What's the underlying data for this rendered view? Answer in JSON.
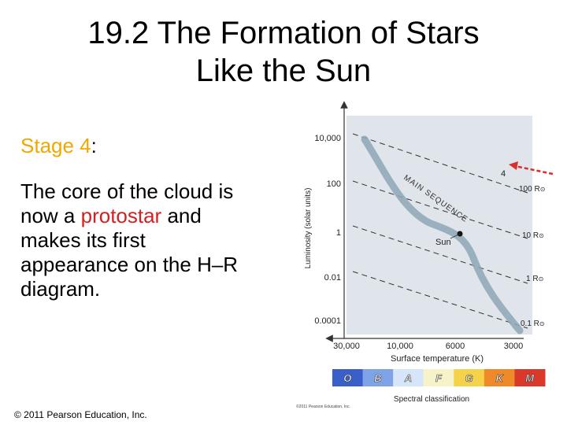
{
  "slide": {
    "title_line1": "19.2 The Formation of Stars",
    "title_line2": "Like the Sun",
    "stage_label": "Stage 4",
    "stage_colon": ":",
    "body_part1": "The core of the cloud is now a ",
    "body_highlight": "protostar",
    "body_part2": " and makes its first appearance on the H–R diagram.",
    "copyright": "© 2011 Pearson Education, Inc."
  },
  "diagram": {
    "ylabel": "Luminosity (solar units)",
    "xlabel": "Surface temperature (K)",
    "y_ticks": [
      "10,000",
      "100",
      "1",
      "0.01",
      "0.0001"
    ],
    "x_ticks": [
      "30,000",
      "10,000",
      "6000",
      "3000"
    ],
    "radius_lines": [
      "100 R",
      "10 R",
      "1 R",
      "0.1 R"
    ],
    "sun_symbol": "⊙",
    "main_sequence_label": "MAIN SEQUENCE",
    "sun_label": "Sun",
    "stage_marker": "4",
    "spectral_label": "Spectral classification",
    "spectral_classes": [
      "O",
      "B",
      "A",
      "F",
      "G",
      "K",
      "M"
    ],
    "small_credit": "©2011 Pearson Education, Inc.",
    "colors": {
      "panel": "#dfe5ea",
      "main_sequence": "#8fa7b6",
      "arrow": "#d8302c",
      "spectral": [
        "#3a5fc8",
        "#7ea3e6",
        "#d6e6f8",
        "#f7f3c8",
        "#f4d24a",
        "#ee8a2a",
        "#d9382a"
      ]
    }
  }
}
